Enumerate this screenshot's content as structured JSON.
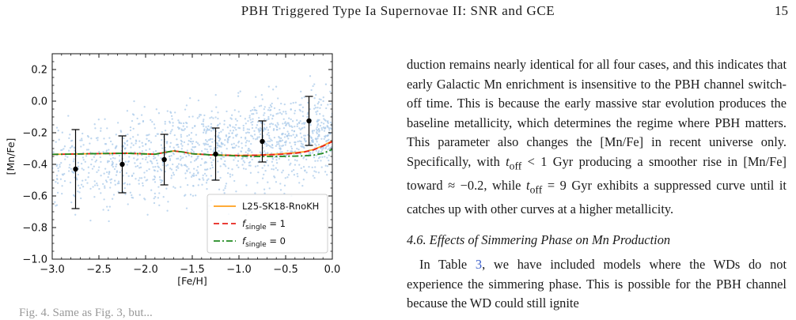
{
  "header": {
    "running_title": "PBH Triggered Type Ia Supernovae II: SNR and GCE",
    "page_number": "15"
  },
  "chart_data": {
    "type": "line",
    "xlabel": "[Fe/H]",
    "ylabel": "[Mn/Fe]",
    "xlim": [
      -3.0,
      0.0
    ],
    "ylim": [
      -1.0,
      0.3
    ],
    "xticks": [
      "−3.0",
      "−2.5",
      "−2.0",
      "−1.5",
      "−1.0",
      "−0.5",
      "0.0"
    ],
    "yticks": [
      "0.2",
      "0.0",
      "−0.2",
      "−0.4",
      "−0.6",
      "−0.8",
      "−1.0"
    ],
    "grid": false,
    "legend_position": "lower right",
    "colors": {
      "scatter": "#a9c9ea",
      "L25-SK18-RnoKH": "#ff9f1c",
      "f_single_1": "#e8221b",
      "f_single_0": "#218a21",
      "binned_points": "#000000"
    },
    "series": [
      {
        "name": "L25-SK18-RnoKH",
        "style": "solid",
        "x": [
          -3.0,
          -2.5,
          -2.2,
          -2.0,
          -1.9,
          -1.8,
          -1.7,
          -1.6,
          -1.5,
          -1.3,
          -1.0,
          -0.8,
          -0.6,
          -0.4,
          -0.3,
          -0.2,
          -0.1,
          0.0
        ],
        "y": [
          -0.337,
          -0.332,
          -0.33,
          -0.334,
          -0.336,
          -0.325,
          -0.315,
          -0.322,
          -0.333,
          -0.34,
          -0.344,
          -0.342,
          -0.336,
          -0.327,
          -0.32,
          -0.306,
          -0.282,
          -0.252
        ]
      },
      {
        "name": "f_single = 1",
        "style": "dashed",
        "x": [
          -3.0,
          -2.5,
          -2.2,
          -2.0,
          -1.9,
          -1.8,
          -1.7,
          -1.6,
          -1.5,
          -1.3,
          -1.0,
          -0.8,
          -0.6,
          -0.4,
          -0.3,
          -0.2,
          -0.1,
          0.0
        ],
        "y": [
          -0.337,
          -0.332,
          -0.33,
          -0.334,
          -0.336,
          -0.325,
          -0.315,
          -0.322,
          -0.333,
          -0.34,
          -0.344,
          -0.342,
          -0.338,
          -0.33,
          -0.322,
          -0.308,
          -0.284,
          -0.256
        ]
      },
      {
        "name": "f_single = 0",
        "style": "dashdot",
        "x": [
          -3.0,
          -2.5,
          -2.2,
          -2.0,
          -1.9,
          -1.8,
          -1.7,
          -1.6,
          -1.5,
          -1.3,
          -1.0,
          -0.8,
          -0.6,
          -0.4,
          -0.3,
          -0.2,
          -0.1,
          0.0
        ],
        "y": [
          -0.337,
          -0.332,
          -0.33,
          -0.334,
          -0.336,
          -0.325,
          -0.315,
          -0.322,
          -0.333,
          -0.34,
          -0.347,
          -0.35,
          -0.35,
          -0.348,
          -0.346,
          -0.342,
          -0.33,
          -0.305
        ]
      }
    ],
    "binned_data": [
      {
        "x": -2.75,
        "y": -0.43,
        "yerr": 0.25
      },
      {
        "x": -2.25,
        "y": -0.4,
        "yerr": 0.18
      },
      {
        "x": -1.8,
        "y": -0.37,
        "yerr": 0.16
      },
      {
        "x": -1.25,
        "y": -0.335,
        "yerr": 0.165
      },
      {
        "x": -0.75,
        "y": -0.255,
        "yerr": 0.13
      },
      {
        "x": -0.25,
        "y": -0.125,
        "yerr": 0.155
      }
    ],
    "legend_entries": [
      {
        "label": "L25-SK18-RnoKH",
        "sub": ""
      },
      {
        "label": "f",
        "sub": "single",
        "suffix": " = 1"
      },
      {
        "label": "f",
        "sub": "single",
        "suffix": " = 0"
      }
    ]
  },
  "body": {
    "para1_parts": [
      "duction remains nearly identical for all four cases, and this indicates that early Galactic Mn enrichment is insensitive to the PBH channel switch-off time. This is because the early massive star evolution produces the baseline metallicity, which determines the regime where PBH matters. This parameter also changes the [Mn/Fe] in recent universe only. Specifically, with ",
      "t",
      "off",
      " < 1 Gyr producing a smoother rise in [Mn/Fe] toward ≈ −0.2, while ",
      "t",
      "off",
      " = 9 Gyr exhibits a suppressed curve until it catches up with other curves at a higher metallicity."
    ],
    "section_heading": "4.6. Effects of Simmering Phase on Mn Production",
    "para2_parts": [
      "In Table ",
      "3",
      ", we have included models where the WDs do not experience the simmering phase. This is possible for the PBH channel because the WD could still ignite"
    ],
    "caption_fragment": "Fig. 4. Same as Fig. 3, but..."
  }
}
